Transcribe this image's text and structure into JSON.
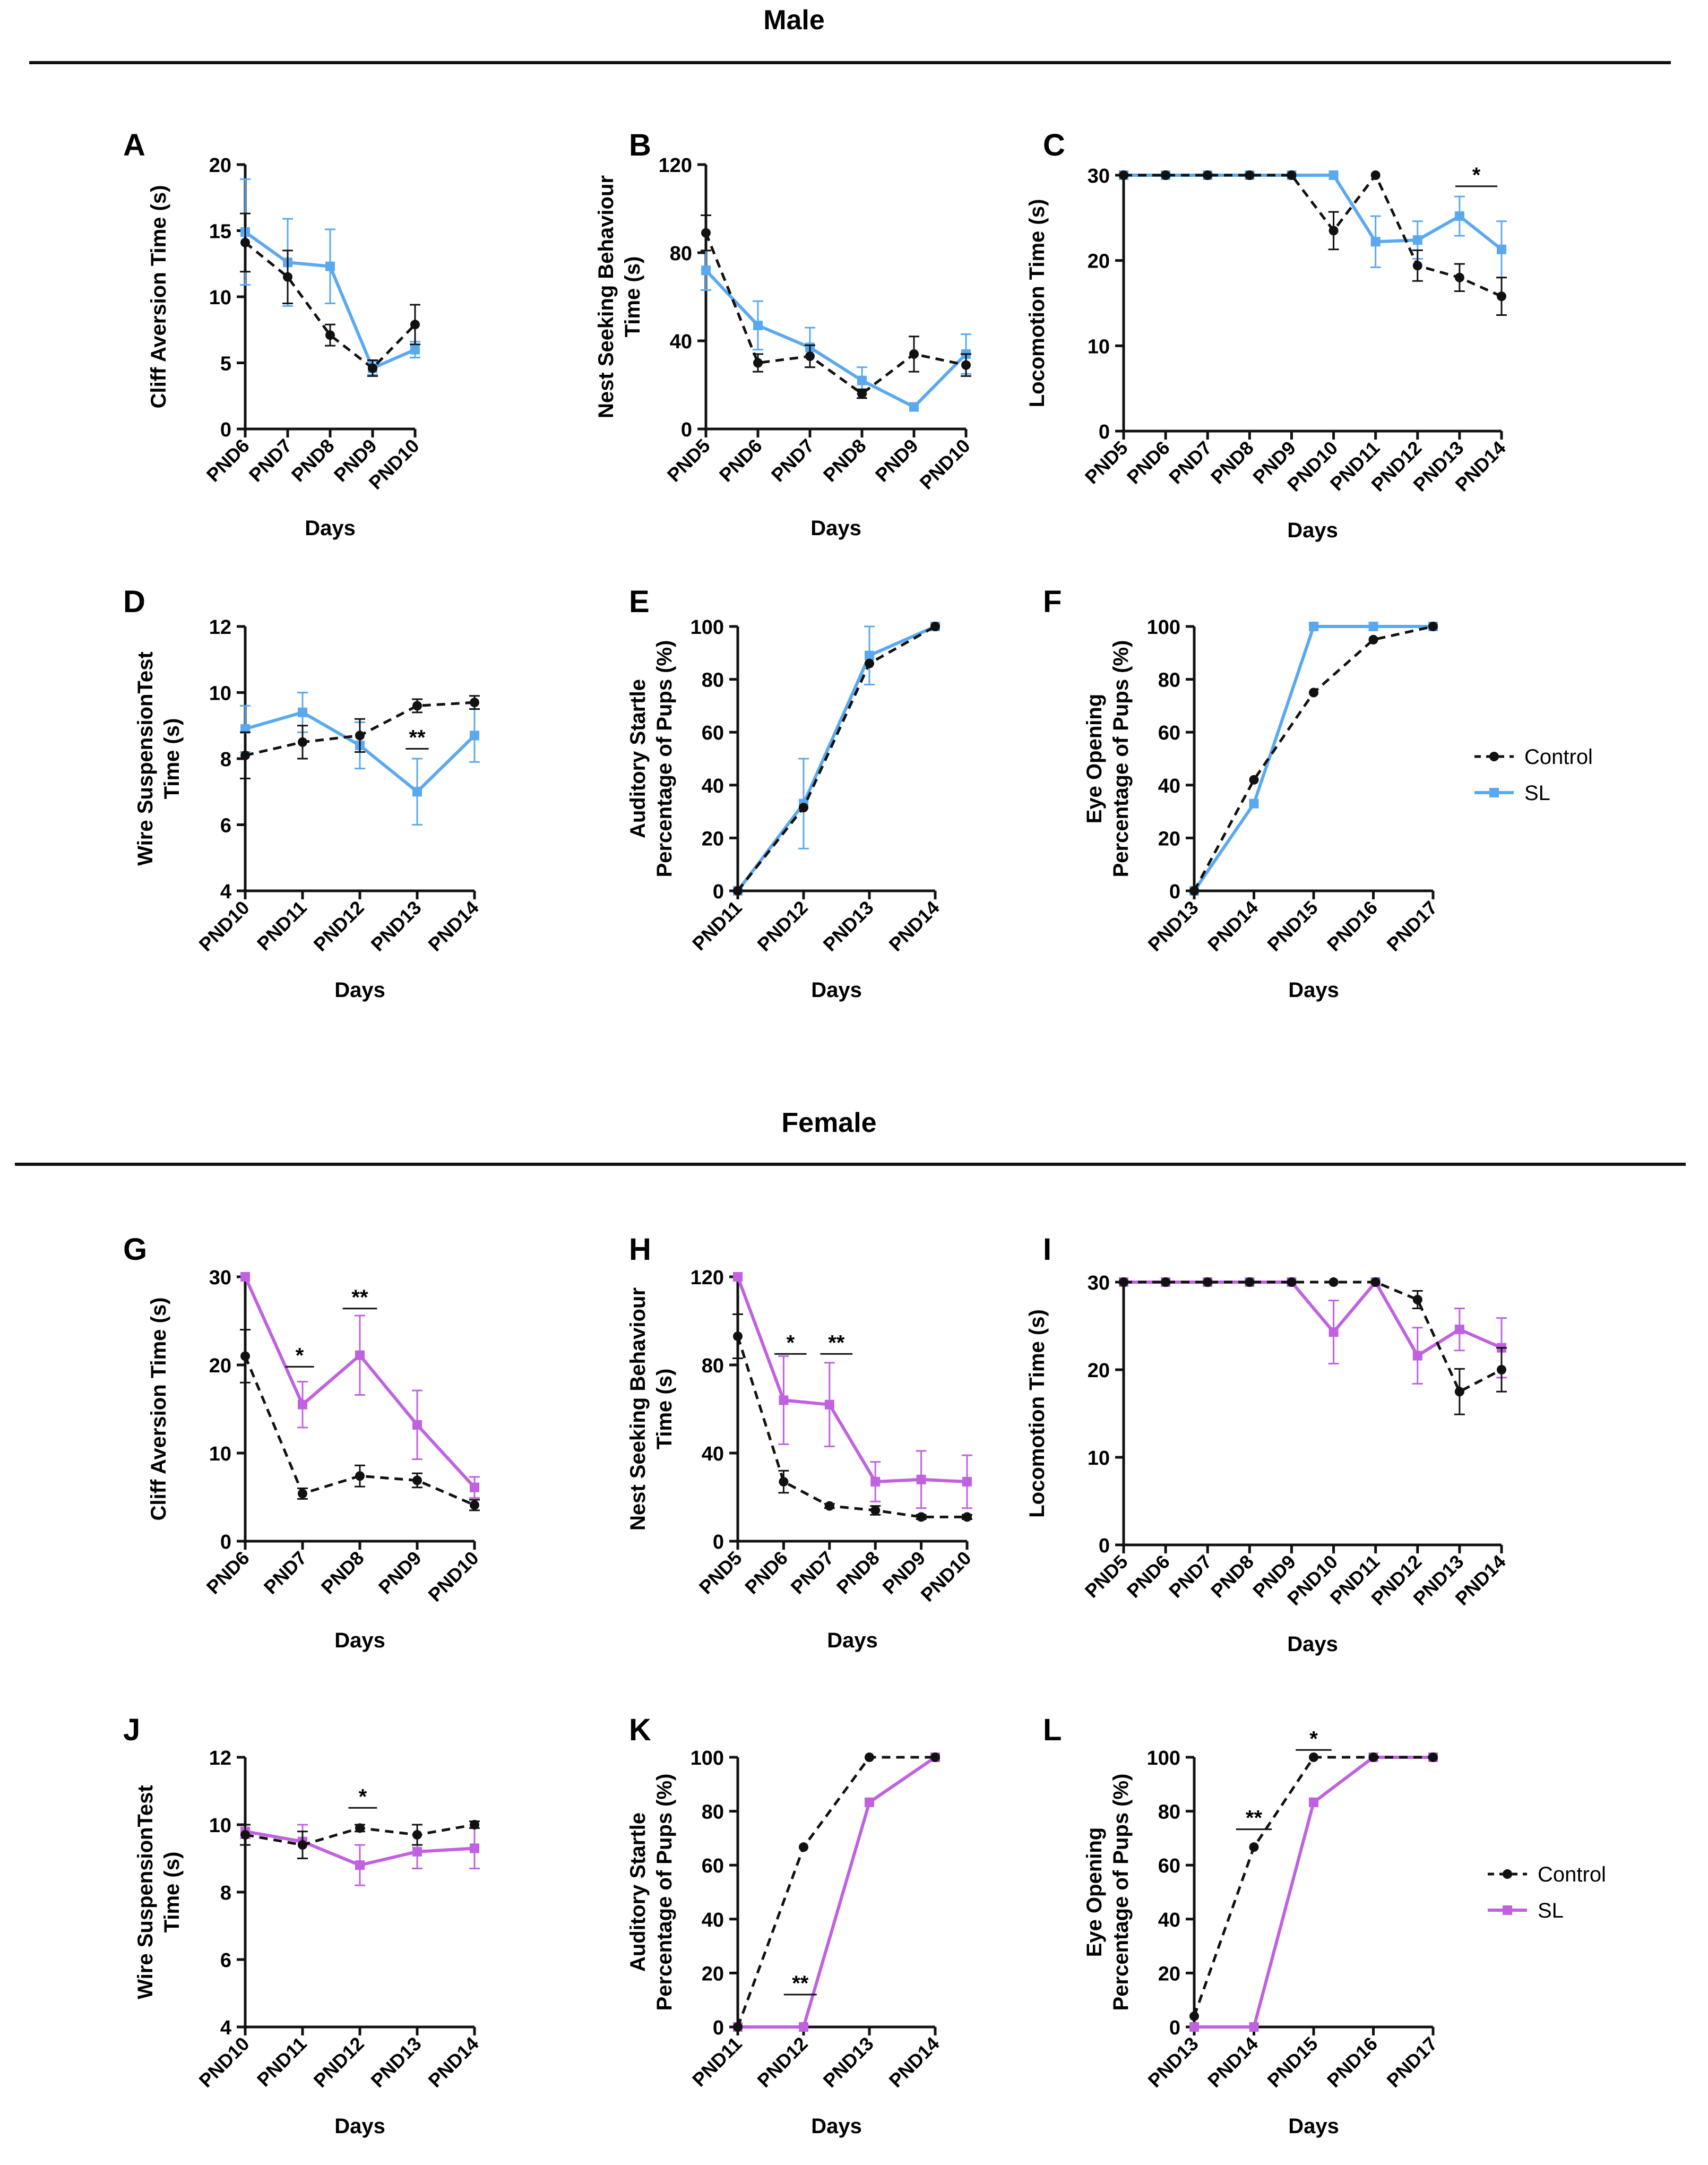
{
  "sections": {
    "male_title": "Male",
    "female_title": "Female"
  },
  "legend_top": {
    "series": [
      {
        "name": "Control",
        "style": "dashed-black"
      },
      {
        "name": "SL",
        "style": "solid-blue"
      }
    ]
  },
  "legend_bottom": {
    "series": [
      {
        "name": "Control",
        "style": "dashed-black"
      },
      {
        "name": "SL",
        "style": "solid-purple"
      }
    ]
  },
  "colors": {
    "control": "#111111",
    "sl_male": "#5aa9f0",
    "sl_female": "#c061e0"
  },
  "chart_data": [
    {
      "id": "A",
      "letter": "A",
      "type": "line",
      "ylabel": [
        "Cliff Aversion Time (s)"
      ],
      "xlabel": "Days",
      "ylim": [
        0,
        20
      ],
      "yticks": [
        0,
        5,
        10,
        15,
        20
      ],
      "categories": [
        "PND6",
        "PND7",
        "PND8",
        "PND9",
        "PND10"
      ],
      "series": [
        {
          "name": "Control",
          "values": [
            14.1,
            11.5,
            7.1,
            4.6,
            7.9
          ],
          "err": [
            2.2,
            2.0,
            0.8,
            0.6,
            1.5
          ]
        },
        {
          "name": "SL",
          "values": [
            14.9,
            12.6,
            12.3,
            4.6,
            6.0
          ],
          "err": [
            4.0,
            3.3,
            2.8,
            0.5,
            0.6
          ]
        }
      ],
      "annotations": []
    },
    {
      "id": "B",
      "letter": "B",
      "type": "line",
      "ylabel": [
        "Nest Seeking Behaviour",
        "Time (s)"
      ],
      "xlabel": "Days",
      "ylim": [
        0,
        120
      ],
      "yticks": [
        0,
        40,
        80,
        120
      ],
      "categories": [
        "PND5",
        "PND6",
        "PND7",
        "PND8",
        "PND9",
        "PND10"
      ],
      "series": [
        {
          "name": "Control",
          "values": [
            89,
            30,
            33,
            16,
            34,
            29
          ],
          "err": [
            8,
            4,
            5,
            2,
            8,
            5
          ]
        },
        {
          "name": "SL",
          "values": [
            72,
            47,
            37,
            22,
            10,
            34
          ],
          "err": [
            9,
            11,
            9,
            6,
            0,
            9
          ]
        }
      ],
      "annotations": []
    },
    {
      "id": "C",
      "letter": "C",
      "type": "line",
      "ylabel": [
        "Locomotion Time (s)"
      ],
      "xlabel": "Days",
      "ylim": [
        0,
        30
      ],
      "yticks": [
        0,
        10,
        20,
        30
      ],
      "categories": [
        "PND5",
        "PND6",
        "PND7",
        "PND8",
        "PND9",
        "PND10",
        "PND11",
        "PND12",
        "PND13",
        "PND14"
      ],
      "series": [
        {
          "name": "Control",
          "values": [
            30,
            30,
            30,
            30,
            30,
            23.5,
            30,
            19.4,
            18,
            15.8
          ],
          "err": [
            0,
            0,
            0,
            0,
            0,
            2.2,
            0,
            1.8,
            1.6,
            2.2
          ]
        },
        {
          "name": "SL",
          "values": [
            30,
            30,
            30,
            30,
            30,
            30,
            22.2,
            22.4,
            25.2,
            21.3
          ],
          "err": [
            0,
            0,
            0,
            0,
            0,
            0,
            3,
            2.2,
            2.3,
            3.3
          ]
        }
      ],
      "annotations": [
        {
          "text": "*",
          "from": 7.9,
          "to": 8.9,
          "y": 28.7
        }
      ]
    },
    {
      "id": "D",
      "letter": "D",
      "type": "line",
      "ylabel": [
        "Wire SuspensionTest",
        "Time (s)"
      ],
      "xlabel": "Days",
      "ylim": [
        4,
        12
      ],
      "yticks": [
        4,
        6,
        8,
        10,
        12
      ],
      "categories": [
        "PND10",
        "PND11",
        "PND12",
        "PND13",
        "PND14"
      ],
      "series": [
        {
          "name": "Control",
          "values": [
            8.1,
            8.5,
            8.7,
            9.6,
            9.7
          ],
          "err": [
            0.7,
            0.5,
            0.5,
            0.2,
            0.2
          ]
        },
        {
          "name": "SL",
          "values": [
            8.9,
            9.4,
            8.4,
            7.0,
            8.7
          ],
          "err": [
            0.7,
            0.6,
            0.7,
            1.0,
            0.8
          ]
        }
      ],
      "annotations": [
        {
          "text": "**",
          "from": 2.8,
          "to": 3.2,
          "y": 8.3
        }
      ]
    },
    {
      "id": "E",
      "letter": "E",
      "type": "line",
      "ylabel": [
        "Auditory Startle",
        "Percentage of Pups (%)"
      ],
      "xlabel": "Days",
      "ylim": [
        0,
        100
      ],
      "yticks": [
        0,
        20,
        40,
        60,
        80,
        100
      ],
      "categories": [
        "PND11",
        "PND12",
        "PND13",
        "PND14"
      ],
      "series": [
        {
          "name": "Control",
          "values": [
            0,
            31.5,
            86,
            100
          ],
          "err": [
            0,
            0,
            0,
            0
          ]
        },
        {
          "name": "SL",
          "values": [
            0,
            33,
            89,
            100
          ],
          "err": [
            0,
            17,
            11,
            0
          ]
        }
      ],
      "annotations": []
    },
    {
      "id": "F",
      "letter": "F",
      "type": "line",
      "ylabel": [
        "Eye Opening",
        "Percentage of Pups (%)"
      ],
      "xlabel": "Days",
      "ylim": [
        0,
        100
      ],
      "yticks": [
        0,
        20,
        40,
        60,
        80,
        100
      ],
      "categories": [
        "PND13",
        "PND14",
        "PND15",
        "PND16",
        "PND17"
      ],
      "series": [
        {
          "name": "Control",
          "values": [
            0,
            42,
            75,
            95,
            100
          ],
          "err": [
            0,
            0,
            0,
            0,
            0
          ]
        },
        {
          "name": "SL",
          "values": [
            0,
            33,
            100,
            100,
            100
          ],
          "err": [
            0,
            0,
            0,
            0,
            0
          ]
        }
      ],
      "annotations": []
    },
    {
      "id": "G",
      "letter": "G",
      "type": "line",
      "ylabel": [
        "Cliff Aversion Time (s)"
      ],
      "xlabel": "Days",
      "ylim": [
        0,
        30
      ],
      "yticks": [
        0,
        10,
        20,
        30
      ],
      "categories": [
        "PND6",
        "PND7",
        "PND8",
        "PND9",
        "PND10"
      ],
      "series": [
        {
          "name": "Control",
          "values": [
            21,
            5.4,
            7.4,
            6.9,
            4.1
          ],
          "err": [
            3,
            0.6,
            1.2,
            0.8,
            0.6
          ]
        },
        {
          "name": "SL",
          "values": [
            30,
            15.5,
            21.1,
            13.2,
            6.1
          ],
          "err": [
            0,
            2.6,
            4.5,
            3.9,
            1.2
          ]
        }
      ],
      "annotations": [
        {
          "text": "*",
          "from": 0.7,
          "to": 1.2,
          "y": 19.8
        },
        {
          "text": "**",
          "from": 1.7,
          "to": 2.3,
          "y": 26.4
        }
      ]
    },
    {
      "id": "H",
      "letter": "H",
      "type": "line",
      "ylabel": [
        "Nest Seeking Behaviour",
        "Time (s)"
      ],
      "xlabel": "Days",
      "ylim": [
        0,
        120
      ],
      "yticks": [
        0,
        40,
        80,
        120
      ],
      "categories": [
        "PND5",
        "PND6",
        "PND7",
        "PND8",
        "PND9",
        "PND10"
      ],
      "series": [
        {
          "name": "Control",
          "values": [
            93,
            27,
            16,
            14,
            11,
            11
          ],
          "err": [
            10,
            5,
            1,
            2,
            1,
            1
          ]
        },
        {
          "name": "SL",
          "values": [
            120,
            64,
            62,
            27,
            28,
            27
          ],
          "err": [
            0,
            20,
            19,
            9,
            13,
            12
          ]
        }
      ],
      "annotations": [
        {
          "text": "*",
          "from": 0.8,
          "to": 1.5,
          "y": 85
        },
        {
          "text": "**",
          "from": 1.8,
          "to": 2.5,
          "y": 85
        }
      ]
    },
    {
      "id": "I",
      "letter": "I",
      "type": "line",
      "ylabel": [
        "Locomotion Time (s)"
      ],
      "xlabel": "Days",
      "ylim": [
        0,
        30
      ],
      "yticks": [
        0,
        10,
        20,
        30
      ],
      "categories": [
        "PND5",
        "PND6",
        "PND7",
        "PND8",
        "PND9",
        "PND10",
        "PND11",
        "PND12",
        "PND13",
        "PND14"
      ],
      "series": [
        {
          "name": "Control",
          "values": [
            30,
            30,
            30,
            30,
            30,
            30,
            30,
            28,
            17.5,
            20
          ],
          "err": [
            0,
            0,
            0,
            0,
            0,
            0,
            0,
            1,
            2.6,
            2.5
          ]
        },
        {
          "name": "SL",
          "values": [
            30,
            30,
            30,
            30,
            30,
            24.3,
            30,
            21.6,
            24.6,
            22.5
          ],
          "err": [
            0,
            0,
            0,
            0,
            0,
            3.6,
            0,
            3.2,
            2.4,
            3.4
          ]
        }
      ],
      "annotations": []
    },
    {
      "id": "J",
      "letter": "J",
      "type": "line",
      "ylabel": [
        "Wire SuspensionTest",
        "Time (s)"
      ],
      "xlabel": "Days",
      "ylim": [
        4,
        12
      ],
      "yticks": [
        4,
        6,
        8,
        10,
        12
      ],
      "categories": [
        "PND10",
        "PND11",
        "PND12",
        "PND13",
        "PND14"
      ],
      "series": [
        {
          "name": "Control",
          "values": [
            9.7,
            9.4,
            9.9,
            9.7,
            10
          ],
          "err": [
            0.3,
            0.4,
            0.1,
            0.3,
            0.1
          ]
        },
        {
          "name": "SL",
          "values": [
            9.8,
            9.5,
            8.8,
            9.2,
            9.3
          ],
          "err": [
            0.2,
            0.5,
            0.6,
            0.5,
            0.6
          ]
        }
      ],
      "annotations": [
        {
          "text": "*",
          "from": 1.8,
          "to": 2.3,
          "y": 10.5
        }
      ]
    },
    {
      "id": "K",
      "letter": "K",
      "type": "line",
      "ylabel": [
        "Auditory Startle",
        "Percentage of Pups (%)"
      ],
      "xlabel": "Days",
      "ylim": [
        0,
        100
      ],
      "yticks": [
        0,
        20,
        40,
        60,
        80,
        100
      ],
      "categories": [
        "PND11",
        "PND12",
        "PND13",
        "PND14"
      ],
      "series": [
        {
          "name": "Control",
          "values": [
            0,
            66.7,
            100,
            100
          ],
          "err": [
            0,
            0,
            0,
            0
          ]
        },
        {
          "name": "SL",
          "values": [
            0,
            0,
            83.3,
            100
          ],
          "err": [
            0,
            0,
            0,
            0
          ]
        }
      ],
      "annotations": [
        {
          "text": "**",
          "from": 0.7,
          "to": 1.2,
          "y": 12
        }
      ]
    },
    {
      "id": "L",
      "letter": "L",
      "type": "line",
      "ylabel": [
        "Eye Opening",
        "Percentage of Pups (%)"
      ],
      "xlabel": "Days",
      "ylim": [
        0,
        100
      ],
      "yticks": [
        0,
        20,
        40,
        60,
        80,
        100
      ],
      "categories": [
        "PND13",
        "PND14",
        "PND15",
        "PND16",
        "PND17"
      ],
      "series": [
        {
          "name": "Control",
          "values": [
            4,
            66.7,
            100,
            100,
            100
          ],
          "err": [
            0,
            0,
            0,
            0,
            0
          ]
        },
        {
          "name": "SL",
          "values": [
            0,
            0,
            83.3,
            100,
            100
          ],
          "err": [
            0,
            0,
            0,
            0,
            0
          ]
        }
      ],
      "annotations": [
        {
          "text": "**",
          "from": 0.7,
          "to": 1.3,
          "y": 73.3
        },
        {
          "text": "*",
          "from": 1.7,
          "to": 2.3,
          "y": 102.7
        }
      ]
    }
  ]
}
